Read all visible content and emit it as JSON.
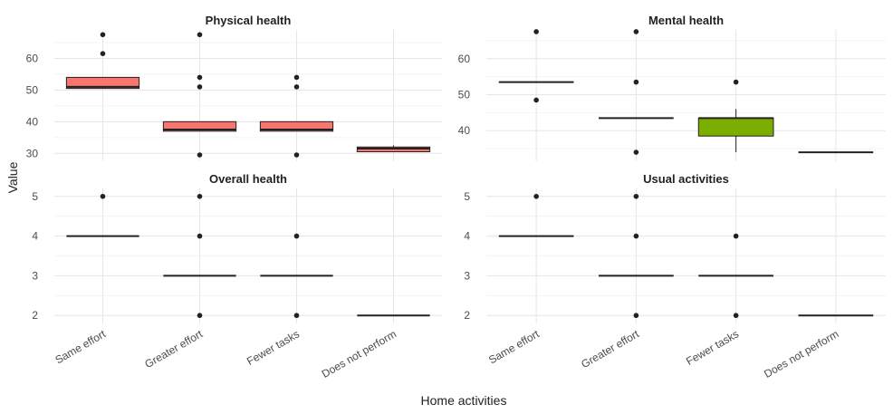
{
  "axis_labels": {
    "x": "Home activities",
    "y": "Value"
  },
  "chart_data": [
    {
      "type": "box",
      "title": "Physical health",
      "categories": [
        "Same effort",
        "Greater effort",
        "Fewer tasks",
        "Does not perform"
      ],
      "ylim": [
        27.5,
        69
      ],
      "yticks": [
        30,
        40,
        50,
        60
      ],
      "fill": "#f8766d",
      "boxes": [
        {
          "category": "Same effort",
          "q1": 50.5,
          "median": 51,
          "q3": 54,
          "whisker_low": 50.5,
          "whisker_high": 54,
          "outliers": [
            61.5,
            67.5
          ]
        },
        {
          "category": "Greater effort",
          "q1": 37,
          "median": 37.5,
          "q3": 40,
          "whisker_low": 37,
          "whisker_high": 40,
          "outliers": [
            29.5,
            51,
            54,
            67.5
          ]
        },
        {
          "category": "Fewer tasks",
          "q1": 37,
          "median": 37.5,
          "q3": 40,
          "whisker_low": 37,
          "whisker_high": 40,
          "outliers": [
            29.5,
            51,
            54
          ]
        },
        {
          "category": "Does not perform",
          "q1": 30.5,
          "median": 31.5,
          "q3": 32,
          "whisker_low": 30.5,
          "whisker_high": 32.5,
          "outliers": []
        }
      ]
    },
    {
      "type": "box",
      "title": "Mental health",
      "categories": [
        "Same effort",
        "Greater effort",
        "Fewer tasks",
        "Does not perform"
      ],
      "ylim": [
        31.5,
        68
      ],
      "yticks": [
        40,
        50,
        60
      ],
      "fill": "#7cae00",
      "boxes": [
        {
          "category": "Same effort",
          "q1": 53.5,
          "median": 53.5,
          "q3": 53.5,
          "whisker_low": 53.5,
          "whisker_high": 53.5,
          "outliers": [
            48.5,
            67.5
          ]
        },
        {
          "category": "Greater effort",
          "q1": 43.5,
          "median": 43.5,
          "q3": 43.5,
          "whisker_low": 43.5,
          "whisker_high": 43.5,
          "outliers": [
            34,
            53.5,
            67.5
          ]
        },
        {
          "category": "Fewer tasks",
          "q1": 38.5,
          "median": 43.5,
          "q3": 43.5,
          "whisker_low": 34,
          "whisker_high": 46,
          "outliers": [
            53.5
          ]
        },
        {
          "category": "Does not perform",
          "q1": 34,
          "median": 34,
          "q3": 34,
          "whisker_low": 34,
          "whisker_high": 34,
          "outliers": []
        }
      ]
    },
    {
      "type": "box",
      "title": "Overall health",
      "categories": [
        "Same effort",
        "Greater effort",
        "Fewer tasks",
        "Does not perform"
      ],
      "ylim": [
        1.8,
        5.2
      ],
      "yticks": [
        2,
        3,
        4,
        5
      ],
      "fill": "#f8766d",
      "boxes": [
        {
          "category": "Same effort",
          "q1": 4,
          "median": 4,
          "q3": 4,
          "whisker_low": 4,
          "whisker_high": 4,
          "outliers": [
            5
          ]
        },
        {
          "category": "Greater effort",
          "q1": 3,
          "median": 3,
          "q3": 3,
          "whisker_low": 3,
          "whisker_high": 3,
          "outliers": [
            2,
            4,
            5
          ]
        },
        {
          "category": "Fewer tasks",
          "q1": 3,
          "median": 3,
          "q3": 3,
          "whisker_low": 3,
          "whisker_high": 3,
          "outliers": [
            2,
            4
          ]
        },
        {
          "category": "Does not perform",
          "q1": 2,
          "median": 2,
          "q3": 2,
          "whisker_low": 2,
          "whisker_high": 2,
          "outliers": []
        }
      ]
    },
    {
      "type": "box",
      "title": "Usual activities",
      "categories": [
        "Same effort",
        "Greater effort",
        "Fewer tasks",
        "Does not perform"
      ],
      "ylim": [
        1.8,
        5.2
      ],
      "yticks": [
        2,
        3,
        4,
        5
      ],
      "fill": "#7cae00",
      "boxes": [
        {
          "category": "Same effort",
          "q1": 4,
          "median": 4,
          "q3": 4,
          "whisker_low": 4,
          "whisker_high": 4,
          "outliers": [
            5
          ]
        },
        {
          "category": "Greater effort",
          "q1": 3,
          "median": 3,
          "q3": 3,
          "whisker_low": 3,
          "whisker_high": 3,
          "outliers": [
            2,
            4,
            5
          ]
        },
        {
          "category": "Fewer tasks",
          "q1": 3,
          "median": 3,
          "q3": 3,
          "whisker_low": 3,
          "whisker_high": 3,
          "outliers": [
            2,
            4
          ]
        },
        {
          "category": "Does not perform",
          "q1": 2,
          "median": 2,
          "q3": 2,
          "whisker_low": 2,
          "whisker_high": 2,
          "outliers": []
        }
      ]
    }
  ],
  "colors": {
    "grid": "#e6e6e6",
    "median": "#222222",
    "point": "#222222",
    "box_stroke": "#222222"
  }
}
